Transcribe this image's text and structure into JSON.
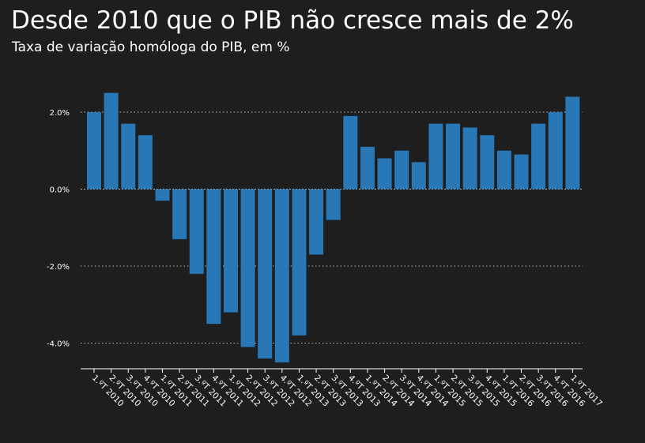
{
  "header": {
    "title": "Desde 2010 que o PIB não cresce mais de 2%",
    "subtitle": "Taxa de variação homóloga do PIB, em %"
  },
  "colors": {
    "bar": "#2878b8",
    "background": "#1e1e1e",
    "grid": "#bfbfbf",
    "text": "#ffffff"
  },
  "chart_data": {
    "type": "bar",
    "title": "Desde 2010 que o PIB não cresce mais de 2%",
    "subtitle": "Taxa de variação homóloga do PIB, em %",
    "xlabel": "",
    "ylabel": "",
    "ylim": [
      -4.8,
      2.8
    ],
    "yticks": [
      2.0,
      0.0,
      -2.0,
      -4.0
    ],
    "ytick_labels": [
      "2.0%",
      "0.0%",
      "-2.0%",
      "-4.0%"
    ],
    "grid": "horizontal-dotted",
    "categories": [
      "1.ºT 2010",
      "2.ºT 2010",
      "3.ºT 2010",
      "4.ºT 2010",
      "1.ºT 2011",
      "2.ºT 2011",
      "3.ºT 2011",
      "4.ºT 2011",
      "1.ºT 2012",
      "2.ºT 2012",
      "3.ºT 2012",
      "4.ºT 2012",
      "1.ºT 2013",
      "2.ºT 2013",
      "3.ºT 2013",
      "4.ºT 2013",
      "1.ºT 2014",
      "2.ºT 2014",
      "3.ºT 2014",
      "4.ºT 2014",
      "1.ºT 2015",
      "2.ºT 2015",
      "3.ºT 2015",
      "4.ºT 2015",
      "1.ºT 2016",
      "2.ºT 2016",
      "3.ºT 2016",
      "4.ºT 2016",
      "1.ºT 2017"
    ],
    "values": [
      2.0,
      2.5,
      1.7,
      1.4,
      -0.3,
      -1.3,
      -2.2,
      -3.5,
      -3.2,
      -4.1,
      -4.4,
      -4.5,
      -3.8,
      -1.7,
      -0.8,
      1.9,
      1.1,
      0.8,
      1.0,
      0.7,
      1.7,
      1.7,
      1.6,
      1.4,
      1.0,
      0.9,
      1.7,
      2.0,
      2.4
    ]
  }
}
